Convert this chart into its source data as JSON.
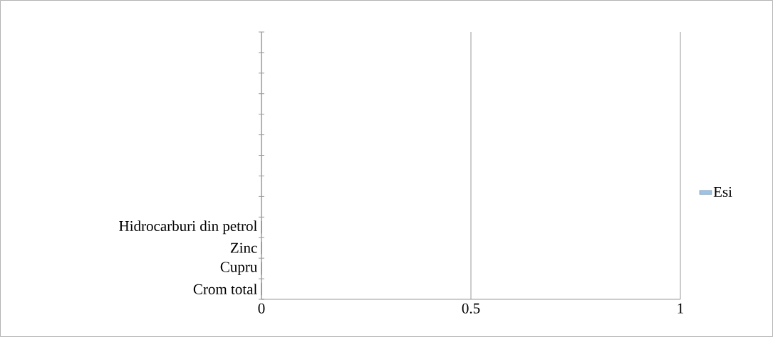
{
  "chart_data": {
    "type": "bar",
    "orientation": "horizontal",
    "categories": [
      null,
      null,
      null,
      null,
      null,
      null,
      null,
      null,
      null,
      "Hidrocarburi din petrol",
      "Zinc",
      "Cupru",
      "Crom total"
    ],
    "series": [
      {
        "name": "Esi",
        "color": "#9dc3e6",
        "values": [
          null,
          null,
          null,
          null,
          null,
          null,
          null,
          null,
          null,
          0,
          0,
          0,
          0
        ]
      }
    ],
    "xlim": [
      0,
      1
    ],
    "xticks": [
      0,
      0.5,
      1
    ],
    "grid": "x",
    "legend": "right"
  }
}
